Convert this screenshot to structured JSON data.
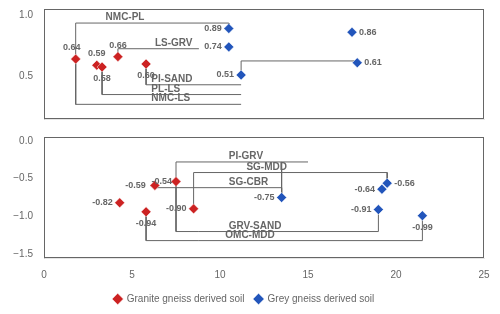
{
  "chart_data": [
    {
      "type": "scatter",
      "xlim": [
        0,
        25
      ],
      "xticks": [
        0,
        5,
        10,
        15,
        20,
        25
      ],
      "ylim": [
        0.15,
        1.05
      ],
      "yticks": [
        0.5,
        {
          "value": 1.0,
          "label": "1.0"
        }
      ],
      "grid": false,
      "tick_labels": "y",
      "data_labels": true,
      "series": [
        {
          "name": "Granite gneiss derived soil",
          "color": "#cc2222",
          "marker": "diamond",
          "x": [
            1.8,
            3.0,
            4.2,
            3.3,
            5.8
          ],
          "values": [
            0.64,
            0.59,
            0.66,
            0.575,
            0.6
          ],
          "value_labels": [
            "0.64",
            "0.59",
            "0.66",
            "0.58",
            "0.60"
          ]
        },
        {
          "name": "Grey gneiss derived soil",
          "color": "#2255bb",
          "marker": "diamond",
          "x": [
            10.5,
            10.5,
            11.2,
            17.5,
            17.8
          ],
          "values": [
            0.89,
            0.74,
            0.51,
            0.86,
            0.61
          ],
          "value_labels": [
            "0.89",
            "0.74",
            "0.51",
            "0.86",
            "0.61"
          ]
        }
      ],
      "annotations": [
        {
          "text": "NMC-PL",
          "x": 3.5,
          "y": 0.94
        },
        {
          "text": "LS-GRV",
          "x": 6.3,
          "y": 0.73
        },
        {
          "text": "PI-SAND",
          "x": 6.1,
          "y": 0.435
        },
        {
          "text": "PL-LS",
          "x": 6.1,
          "y": 0.355
        },
        {
          "text": "NMC-LS",
          "x": 6.1,
          "y": 0.275
        }
      ],
      "brackets": [
        {
          "x": [
            1.8,
            1.8
          ],
          "y": [
            0.64,
            0.935
          ]
        },
        {
          "x": [
            1.8,
            10.5
          ],
          "y": [
            0.935,
            0.935
          ]
        },
        {
          "x": [
            10.5,
            10.5
          ],
          "y": [
            0.935,
            0.89
          ]
        },
        {
          "x": [
            4.2,
            4.2
          ],
          "y": [
            0.66,
            0.725
          ]
        },
        {
          "x": [
            4.2,
            8.8
          ],
          "y": [
            0.725,
            0.725
          ]
        },
        {
          "x": [
            10.5,
            10.5
          ],
          "y": [
            0.74,
            0.725
          ]
        },
        {
          "x": [
            11.2,
            11.2
          ],
          "y": [
            0.51,
            0.625
          ]
        },
        {
          "x": [
            11.2,
            17.8
          ],
          "y": [
            0.625,
            0.625
          ]
        },
        {
          "x": [
            17.8,
            17.8
          ],
          "y": [
            0.625,
            0.61
          ]
        },
        {
          "x": [
            5.8,
            5.8
          ],
          "y": [
            0.6,
            0.43
          ]
        },
        {
          "x": [
            5.8,
            11.2
          ],
          "y": [
            0.43,
            0.43
          ]
        },
        {
          "x": [
            3.3,
            3.3
          ],
          "y": [
            0.575,
            0.35
          ]
        },
        {
          "x": [
            3.3,
            11.2
          ],
          "y": [
            0.35,
            0.35
          ]
        },
        {
          "x": [
            1.8,
            1.8
          ],
          "y": [
            0.64,
            0.27
          ]
        },
        {
          "x": [
            1.8,
            11.2
          ],
          "y": [
            0.27,
            0.27
          ]
        }
      ]
    },
    {
      "type": "scatter",
      "xlim": [
        0,
        25
      ],
      "xticks": [
        0,
        5,
        10,
        15,
        20,
        25
      ],
      "ylim": [
        -1.55,
        0.05
      ],
      "yticks": [
        {
          "value": -1.5,
          "label": "−1.5"
        },
        {
          "value": -1.0,
          "label": "−1.0"
        },
        {
          "value": -0.5,
          "label": "−0.5"
        },
        {
          "value": 0.0,
          "label": "0.0"
        }
      ],
      "grid": false,
      "data_labels": true,
      "legend": "bottom",
      "series": [
        {
          "name": "Granite gneiss derived soil",
          "color": "#cc2222",
          "marker": "diamond",
          "x": [
            4.3,
            6.3,
            7.5,
            5.8,
            8.5
          ],
          "values": [
            -0.82,
            -0.59,
            -0.54,
            -0.94,
            -0.9
          ],
          "value_labels": [
            "-0.82",
            "-0.59",
            "-0.54",
            "-0.94",
            "-0.90"
          ]
        },
        {
          "name": "Grey gneiss derived soil",
          "color": "#2255bb",
          "marker": "diamond",
          "x": [
            13.5,
            19.5,
            19.2,
            19.0,
            21.5
          ],
          "values": [
            -0.75,
            -0.56,
            -0.64,
            -0.91,
            -0.99
          ],
          "value_labels": [
            "-0.75",
            "-0.56",
            "-0.64",
            "-0.91",
            "-0.99"
          ]
        }
      ],
      "annotations": [
        {
          "text": "PI-GRV",
          "x": 10.5,
          "y": -0.27
        },
        {
          "text": "SG-MDD",
          "x": 11.5,
          "y": -0.41
        },
        {
          "text": "SG-CBR",
          "x": 10.5,
          "y": -0.61
        },
        {
          "text": "GRV-SAND",
          "x": 10.5,
          "y": -1.19
        },
        {
          "text": "OMC-MDD",
          "x": 10.3,
          "y": -1.31
        }
      ],
      "brackets": [
        {
          "x": [
            7.5,
            7.5
          ],
          "y": [
            -0.54,
            -0.28
          ]
        },
        {
          "x": [
            7.5,
            15.0
          ],
          "y": [
            -0.28,
            -0.28
          ]
        },
        {
          "x": [
            13.5,
            13.5
          ],
          "y": [
            -0.28,
            -0.75
          ]
        },
        {
          "x": [
            8.5,
            8.5
          ],
          "y": [
            -0.9,
            -0.42
          ]
        },
        {
          "x": [
            8.5,
            19.5
          ],
          "y": [
            -0.42,
            -0.42
          ]
        },
        {
          "x": [
            19.5,
            19.5
          ],
          "y": [
            -0.42,
            -0.56
          ]
        },
        {
          "x": [
            6.3,
            6.3
          ],
          "y": [
            -0.59,
            -0.62
          ]
        },
        {
          "x": [
            6.3,
            13.5
          ],
          "y": [
            -0.62,
            -0.62
          ]
        },
        {
          "x": [
            13.5,
            13.5
          ],
          "y": [
            -0.62,
            -0.75
          ]
        },
        {
          "x": [
            7.5,
            7.5
          ],
          "y": [
            -0.54,
            -1.2
          ]
        },
        {
          "x": [
            7.5,
            8.8
          ],
          "y": [
            -1.2,
            -1.2
          ]
        },
        {
          "x": [
            8.8,
            19.0
          ],
          "y": [
            -1.2,
            -1.2
          ]
        },
        {
          "x": [
            19.0,
            19.0
          ],
          "y": [
            -1.2,
            -0.91
          ]
        },
        {
          "x": [
            5.8,
            5.8
          ],
          "y": [
            -0.94,
            -1.32
          ]
        },
        {
          "x": [
            5.8,
            8.8
          ],
          "y": [
            -1.32,
            -1.32
          ]
        },
        {
          "x": [
            8.8,
            21.5
          ],
          "y": [
            -1.32,
            -1.32
          ]
        },
        {
          "x": [
            21.5,
            21.5
          ],
          "y": [
            -1.32,
            -0.99
          ]
        }
      ]
    }
  ]
}
